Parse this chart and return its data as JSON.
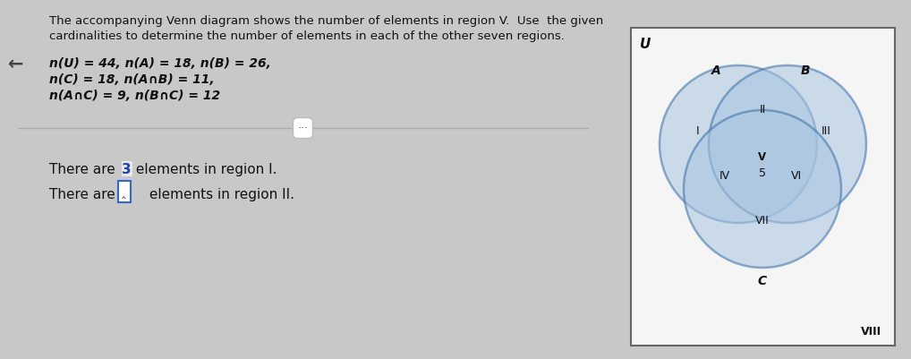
{
  "overall_bg": "#c8c8c8",
  "left_bg": "#e8e8e8",
  "right_bg": "#c8c8c8",
  "title_line1": "The accompanying Venn diagram shows the number of elements in region V.  Use  the given",
  "title_line2": "cardinalities to determine the number of elements in each of the other seven regions.",
  "eq_line1": "n(U) = 44, n(A) = 18, n(B) = 26,",
  "eq_line2": "n(C) = 18, n(A∩B) = 11,",
  "eq_line3": "n(A∩C) = 9, n(B∩C) = 12",
  "ans1_pre": "There are ",
  "ans1_num": "3",
  "ans1_post": " elements in region I.",
  "ans2_pre": "There are ",
  "ans2_post": " elements in region II.",
  "venn_U_label": "U",
  "venn_A_label": "A",
  "venn_B_label": "B",
  "venn_C_label": "C",
  "region_I": "I",
  "region_II": "II",
  "region_III": "III",
  "region_IV": "IV",
  "region_V": "V",
  "region_V_val": "5",
  "region_VI": "VI",
  "region_VII": "VII",
  "region_VIII": "VIII",
  "circle_edge_color": "#3a6ea8",
  "circle_fill_A": "#a8c4e0",
  "circle_fill_B": "#a8c4e0",
  "circle_fill_C": "#a8c4e0",
  "intersect_fill": "#7aadd4",
  "center_fill": "#4a88c0",
  "venn_box_edge": "#666666",
  "venn_box_fill": "#f5f5f5",
  "highlight_color": "#1a44aa",
  "input_box_edge": "#3366cc",
  "arrow_color": "#444444",
  "divider_color": "#aaaaaa",
  "text_color": "#111111"
}
